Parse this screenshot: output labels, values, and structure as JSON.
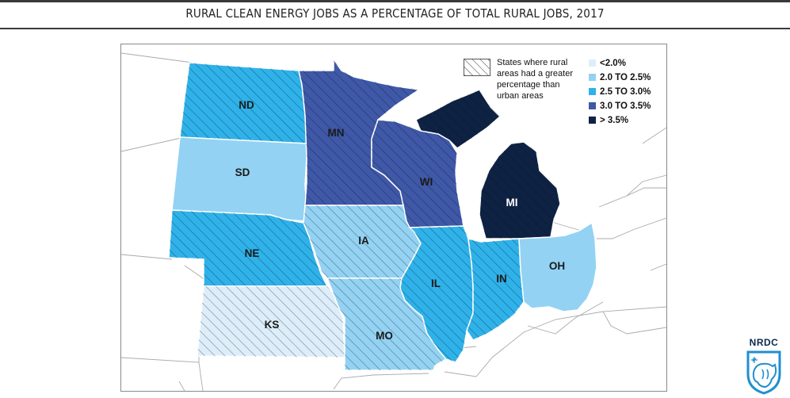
{
  "header": {
    "title": "RURAL CLEAN ENERGY JOBS AS A PERCENTAGE OF TOTAL RURAL JOBS, 2017"
  },
  "legend": {
    "hatch_note": "States where rural areas had a greater percentage than urban areas",
    "scale": [
      {
        "label": "<2.0%",
        "color": "#ddeefa"
      },
      {
        "label": "2.0 TO 2.5%",
        "color": "#93d2f3"
      },
      {
        "label": "2.5 TO 3.0%",
        "color": "#2fb2ea"
      },
      {
        "label": "3.0 TO 3.5%",
        "color": "#3f58a8"
      },
      {
        "label": "> 3.5%",
        "color": "#0e2244"
      }
    ]
  },
  "states": {
    "ND": {
      "label": "ND",
      "class": "2.5 TO 3.0%",
      "color": "#2fb2ea",
      "hatched": true
    },
    "SD": {
      "label": "SD",
      "class": "2.0 TO 2.5%",
      "color": "#93d2f3",
      "hatched": false
    },
    "NE": {
      "label": "NE",
      "class": "2.5 TO 3.0%",
      "color": "#2fb2ea",
      "hatched": true
    },
    "KS": {
      "label": "KS",
      "class": "<2.0%",
      "color": "#ddeefa",
      "hatched": true
    },
    "MN": {
      "label": "MN",
      "class": "3.0 TO 3.5%",
      "color": "#3f58a8",
      "hatched": true
    },
    "IA": {
      "label": "IA",
      "class": "2.0 TO 2.5%",
      "color": "#93d2f3",
      "hatched": true
    },
    "MO": {
      "label": "MO",
      "class": "2.0 TO 2.5%",
      "color": "#93d2f3",
      "hatched": true
    },
    "WI": {
      "label": "WI",
      "class": "3.0 TO 3.5%",
      "color": "#3f58a8",
      "hatched": true
    },
    "IL": {
      "label": "IL",
      "class": "2.5 TO 3.0%",
      "color": "#2fb2ea",
      "hatched": true
    },
    "IN": {
      "label": "IN",
      "class": "2.5 TO 3.0%",
      "color": "#2fb2ea",
      "hatched": true
    },
    "MI": {
      "label": "MI",
      "class": "> 3.5%",
      "color": "#0e2244",
      "hatched": true
    },
    "OH": {
      "label": "OH",
      "class": "2.0 TO 2.5%",
      "color": "#93d2f3",
      "hatched": false
    }
  },
  "logo": {
    "wordmark": "NRDC",
    "icon": "bear-shield-icon"
  }
}
